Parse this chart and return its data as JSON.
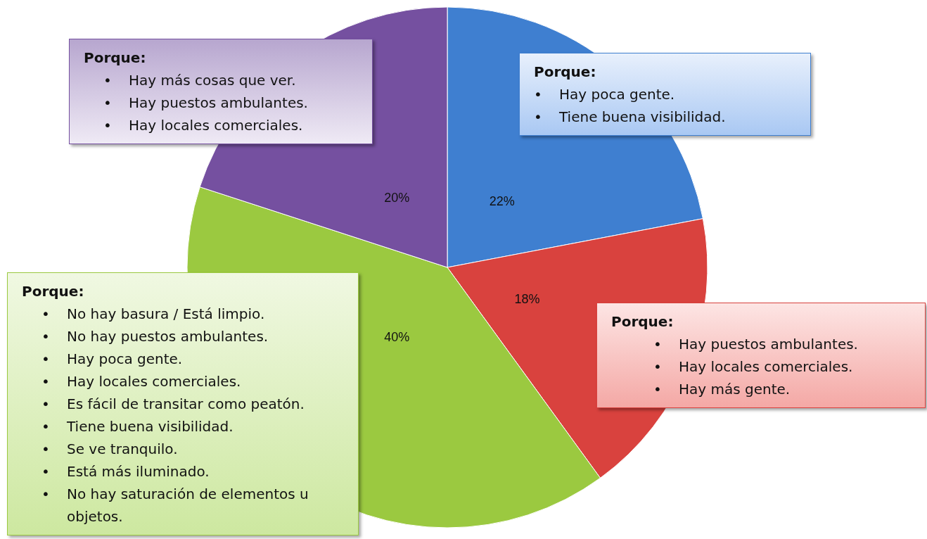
{
  "chart_data": {
    "type": "pie",
    "categories": [
      null,
      null,
      null,
      null
    ],
    "values": [
      22,
      18,
      40,
      20
    ],
    "colors": [
      "#3f7fd0",
      "#d9423e",
      "#9bc940",
      "#7550a0"
    ],
    "value_labels": [
      "22%",
      "18%",
      "40%",
      "20%"
    ],
    "legend": false,
    "annotations": [
      "Porque:\n• Hay más cosas que ver.\n• Hay puestos ambulantes.\n• Hay locales comerciales.",
      "Porque:\n• Hay poca gente.\n• Tiene buena visibilidad.",
      "Porque:\n• No hay basura / Está limpio.\n• No hay puestos ambulantes.\n• Hay poca gente.\n• Hay locales comerciales.\n• Es fácil de transitar como peatón.\n• Tiene buena visibilidad.\n• Se ve tranquilo.\n• Está más iluminado.\n• No hay saturación de elementos u objetos.",
      "Porque:\n• Hay puestos ambulantes.\n• Hay locales comerciales.\n• Hay más gente."
    ]
  }
}
